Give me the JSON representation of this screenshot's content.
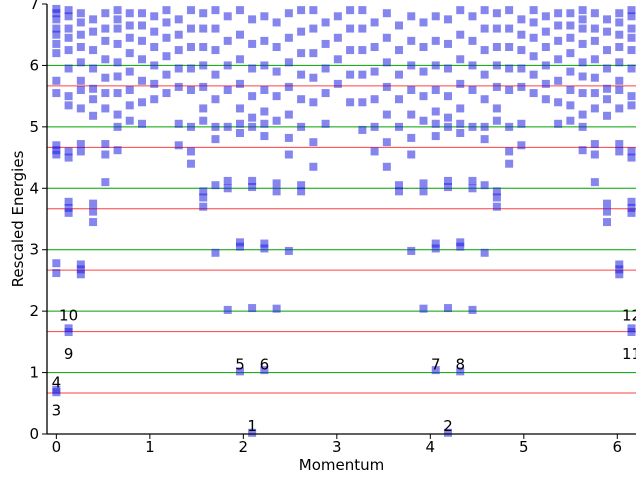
{
  "chart_data": {
    "type": "scatter",
    "title": "",
    "xlabel": "Momentum",
    "ylabel": "Rescaled Energies",
    "xlim": [
      -0.1,
      6.2
    ],
    "ylim": [
      0,
      7
    ],
    "x_ticks": [
      0,
      1,
      2,
      3,
      4,
      5,
      6
    ],
    "y_ticks": [
      0,
      1,
      2,
      3,
      4,
      5,
      6,
      7
    ],
    "grid": false,
    "reference_lines": {
      "green": {
        "color": "#00a000",
        "y": [
          1,
          2,
          3,
          4,
          5,
          6
        ]
      },
      "red": {
        "color": "#ff4040",
        "y": [
          0.667,
          1.667,
          2.667,
          3.667,
          4.667,
          5.667
        ]
      }
    },
    "marker_color": "#2020e0",
    "momenta": [
      0.0,
      0.262,
      0.524,
      0.785,
      1.047,
      1.309,
      1.571,
      1.833,
      2.094,
      2.356,
      2.618,
      2.88,
      3.142,
      3.403,
      3.665,
      3.927,
      4.189,
      4.451,
      4.712,
      4.974,
      5.236,
      5.498,
      5.76,
      6.021,
      6.126
    ],
    "series": [
      {
        "x": 0.0,
        "y": [
          0.72,
          0.68,
          2.62,
          2.78,
          4.55,
          4.62,
          4.7,
          5.55,
          5.75,
          6.2,
          6.35,
          6.5,
          6.6,
          6.75,
          6.85,
          6.92
        ]
      },
      {
        "x": 0.131,
        "y": [
          1.66,
          1.72,
          3.6,
          3.68,
          3.78,
          4.5,
          4.6,
          5.35,
          5.5,
          5.95,
          6.25,
          6.45,
          6.6,
          6.8,
          6.9
        ]
      },
      {
        "x": 0.262,
        "y": [
          2.6,
          2.68,
          2.76,
          4.6,
          4.72,
          5.3,
          5.6,
          5.75,
          6.05,
          6.3,
          6.5,
          6.7,
          6.85
        ]
      },
      {
        "x": 0.393,
        "y": [
          3.45,
          3.62,
          3.75,
          5.18,
          5.45,
          5.62,
          5.95,
          6.25,
          6.55,
          6.75
        ]
      },
      {
        "x": 0.524,
        "y": [
          4.1,
          4.55,
          4.72,
          5.3,
          5.55,
          5.8,
          6.1,
          6.4,
          6.6,
          6.85
        ]
      },
      {
        "x": 0.655,
        "y": [
          4.62,
          5.0,
          5.2,
          5.55,
          5.82,
          6.05,
          6.35,
          6.6,
          6.75,
          6.9
        ]
      },
      {
        "x": 0.785,
        "y": [
          5.1,
          5.35,
          5.6,
          5.9,
          6.2,
          6.45,
          6.65,
          6.85
        ]
      },
      {
        "x": 0.916,
        "y": [
          5.05,
          5.4,
          5.75,
          6.1,
          6.4,
          6.65,
          6.85
        ]
      },
      {
        "x": 1.047,
        "y": [
          5.45,
          5.7,
          6.0,
          6.3,
          6.55,
          6.8
        ]
      },
      {
        "x": 1.178,
        "y": [
          5.55,
          5.85,
          6.15,
          6.45,
          6.7,
          6.9
        ]
      },
      {
        "x": 1.309,
        "y": [
          4.7,
          5.05,
          5.65,
          5.95,
          6.25,
          6.5,
          6.75
        ]
      },
      {
        "x": 1.44,
        "y": [
          4.4,
          4.6,
          5.0,
          5.6,
          5.95,
          6.3,
          6.6,
          6.9
        ]
      },
      {
        "x": 1.571,
        "y": [
          3.7,
          3.85,
          3.95,
          5.1,
          5.3,
          5.65,
          6.0,
          6.3,
          6.6,
          6.85
        ]
      },
      {
        "x": 1.702,
        "y": [
          2.95,
          4.05,
          4.8,
          5.0,
          5.45,
          5.85,
          6.25,
          6.6,
          6.9
        ]
      },
      {
        "x": 1.833,
        "y": [
          2.02,
          4.0,
          4.12,
          5.0,
          5.6,
          6.0,
          6.4,
          6.8
        ]
      },
      {
        "x": 1.964,
        "y": [
          1.02,
          3.05,
          3.12,
          4.9,
          5.05,
          5.3,
          5.7,
          6.1,
          6.5,
          6.9
        ]
      },
      {
        "x": 2.094,
        "y": [
          0.02,
          2.05,
          4.02,
          4.12,
          5.0,
          5.15,
          5.5,
          5.95,
          6.35,
          6.75
        ]
      },
      {
        "x": 2.225,
        "y": [
          1.04,
          3.02,
          3.1,
          4.85,
          5.05,
          5.25,
          5.6,
          6.0,
          6.4,
          6.8
        ]
      },
      {
        "x": 2.356,
        "y": [
          2.04,
          3.95,
          4.08,
          5.1,
          5.5,
          5.9,
          6.3,
          6.7
        ]
      },
      {
        "x": 2.487,
        "y": [
          2.98,
          4.55,
          4.82,
          5.2,
          5.65,
          6.05,
          6.45,
          6.85
        ]
      },
      {
        "x": 2.618,
        "y": [
          3.95,
          4.05,
          5.0,
          5.45,
          5.85,
          6.2,
          6.55,
          6.9
        ]
      },
      {
        "x": 2.749,
        "y": [
          4.35,
          4.75,
          5.4,
          5.8,
          6.2,
          6.6,
          6.9
        ]
      },
      {
        "x": 2.88,
        "y": [
          5.05,
          5.55,
          5.95,
          6.35,
          6.7
        ]
      },
      {
        "x": 3.011,
        "y": [
          5.7,
          6.1,
          6.45,
          6.8
        ]
      },
      {
        "x": 3.142,
        "y": [
          5.4,
          5.85,
          6.25,
          6.6,
          6.9
        ]
      },
      {
        "x": 3.273,
        "y": [
          4.95,
          5.4,
          5.85,
          6.25,
          6.6,
          6.9
        ]
      },
      {
        "x": 3.404,
        "y": [
          4.6,
          5.0,
          5.45,
          5.9,
          6.3,
          6.7
        ]
      },
      {
        "x": 3.535,
        "y": [
          4.35,
          4.75,
          5.2,
          5.65,
          6.05,
          6.45,
          6.85
        ]
      },
      {
        "x": 3.665,
        "y": [
          3.95,
          4.05,
          5.0,
          5.45,
          5.85,
          6.25,
          6.65
        ]
      },
      {
        "x": 3.796,
        "y": [
          2.98,
          4.55,
          4.82,
          5.2,
          5.6,
          6.0,
          6.4,
          6.8
        ]
      },
      {
        "x": 3.927,
        "y": [
          2.04,
          3.95,
          4.08,
          5.1,
          5.5,
          5.9,
          6.3,
          6.7
        ]
      },
      {
        "x": 4.058,
        "y": [
          1.04,
          3.02,
          3.1,
          4.85,
          5.05,
          5.25,
          5.6,
          6.0,
          6.4,
          6.8
        ]
      },
      {
        "x": 4.189,
        "y": [
          0.02,
          2.05,
          4.02,
          4.12,
          5.0,
          5.15,
          5.5,
          5.95,
          6.35,
          6.75
        ]
      },
      {
        "x": 4.32,
        "y": [
          1.02,
          3.05,
          3.12,
          4.9,
          5.05,
          5.3,
          5.7,
          6.1,
          6.5,
          6.9
        ]
      },
      {
        "x": 4.451,
        "y": [
          2.02,
          4.0,
          4.12,
          5.0,
          5.6,
          6.0,
          6.4,
          6.8
        ]
      },
      {
        "x": 4.581,
        "y": [
          2.95,
          4.05,
          4.8,
          5.0,
          5.45,
          5.85,
          6.25,
          6.6,
          6.9
        ]
      },
      {
        "x": 4.712,
        "y": [
          3.7,
          3.85,
          3.95,
          5.1,
          5.3,
          5.65,
          6.0,
          6.3,
          6.6,
          6.85
        ]
      },
      {
        "x": 4.843,
        "y": [
          4.4,
          4.6,
          5.0,
          5.6,
          5.95,
          6.3,
          6.6,
          6.9
        ]
      },
      {
        "x": 4.974,
        "y": [
          4.7,
          5.05,
          5.65,
          5.95,
          6.25,
          6.5,
          6.75
        ]
      },
      {
        "x": 5.105,
        "y": [
          5.55,
          5.85,
          6.15,
          6.45,
          6.7,
          6.9
        ]
      },
      {
        "x": 5.236,
        "y": [
          5.45,
          5.7,
          6.0,
          6.3,
          6.55,
          6.8
        ]
      },
      {
        "x": 5.367,
        "y": [
          5.05,
          5.4,
          5.75,
          6.1,
          6.4,
          6.65,
          6.85
        ]
      },
      {
        "x": 5.498,
        "y": [
          5.1,
          5.35,
          5.6,
          5.9,
          6.2,
          6.45,
          6.65,
          6.85
        ]
      },
      {
        "x": 5.629,
        "y": [
          4.62,
          5.0,
          5.2,
          5.55,
          5.82,
          6.05,
          6.35,
          6.6,
          6.75,
          6.9
        ]
      },
      {
        "x": 5.76,
        "y": [
          4.1,
          4.55,
          4.72,
          5.3,
          5.55,
          5.8,
          6.1,
          6.4,
          6.6,
          6.85
        ]
      },
      {
        "x": 5.89,
        "y": [
          3.45,
          3.62,
          3.75,
          5.18,
          5.45,
          5.62,
          5.95,
          6.25,
          6.55,
          6.75
        ]
      },
      {
        "x": 6.021,
        "y": [
          2.6,
          2.68,
          2.76,
          4.6,
          4.72,
          5.3,
          5.6,
          5.75,
          6.05,
          6.3,
          6.5,
          6.7,
          6.85
        ]
      },
      {
        "x": 6.152,
        "y": [
          1.66,
          1.72,
          3.6,
          3.68,
          3.78,
          4.5,
          4.6,
          5.35,
          5.5,
          5.95,
          6.25,
          6.45,
          6.6,
          6.8,
          6.9
        ]
      }
    ],
    "annotations": [
      {
        "text": "1",
        "x": 2.094,
        "y": 0.13
      },
      {
        "text": "2",
        "x": 4.189,
        "y": 0.13
      },
      {
        "text": "3",
        "x": 0.0,
        "y": 0.38
      },
      {
        "text": "4",
        "x": 0.0,
        "y": 0.84
      },
      {
        "text": "5",
        "x": 1.964,
        "y": 1.13
      },
      {
        "text": "6",
        "x": 2.225,
        "y": 1.13
      },
      {
        "text": "7",
        "x": 4.058,
        "y": 1.13
      },
      {
        "text": "8",
        "x": 4.32,
        "y": 1.13
      },
      {
        "text": "9",
        "x": 0.131,
        "y": 1.3
      },
      {
        "text": "10",
        "x": 0.131,
        "y": 1.93
      },
      {
        "text": "11",
        "x": 6.152,
        "y": 1.3
      },
      {
        "text": "12",
        "x": 6.152,
        "y": 1.93
      }
    ]
  }
}
